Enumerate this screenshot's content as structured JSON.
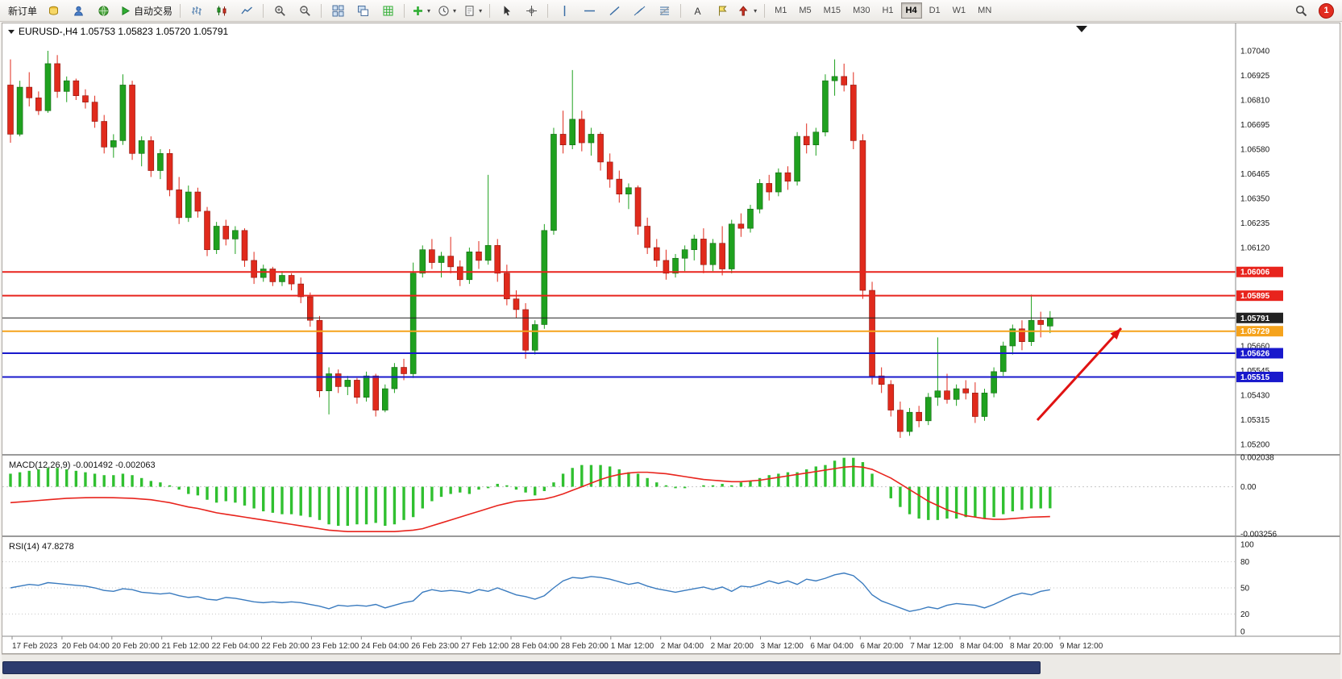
{
  "toolbar": {
    "notification_count": "1",
    "active_timeframe": "H4",
    "timeframes": [
      "M1",
      "M5",
      "M15",
      "M30",
      "H1",
      "H4",
      "D1",
      "W1",
      "MN"
    ],
    "items": [
      {
        "name": "new-order-button",
        "label": "新订单"
      },
      {
        "name": "accounts-button",
        "icon": "coins"
      },
      {
        "name": "support-button",
        "icon": "user"
      },
      {
        "name": "web-terminal-button",
        "icon": "globe"
      },
      {
        "name": "auto-trading-button",
        "icon": "play",
        "label": "自动交易"
      },
      {
        "sep": true
      },
      {
        "name": "bar-chart-button",
        "icon": "bars"
      },
      {
        "name": "candlestick-chart-button",
        "icon": "candles"
      },
      {
        "name": "line-chart-button",
        "icon": "line"
      },
      {
        "sep": true
      },
      {
        "name": "zoom-in-button",
        "icon": "zoom-in"
      },
      {
        "name": "zoom-out-button",
        "icon": "zoom-out"
      },
      {
        "sep": true
      },
      {
        "name": "tile-windows-button",
        "icon": "tile"
      },
      {
        "name": "cascade-windows-button",
        "icon": "cascade"
      },
      {
        "name": "grid-button",
        "icon": "grid"
      },
      {
        "sep": true
      },
      {
        "name": "indicators-button",
        "icon": "plus",
        "caret": true
      },
      {
        "name": "periods-button",
        "icon": "clock",
        "caret": true
      },
      {
        "name": "templates-button",
        "icon": "template",
        "caret": true
      },
      {
        "sep": true
      },
      {
        "name": "cursor-button",
        "icon": "cursor"
      },
      {
        "name": "crosshair-button",
        "icon": "crosshair"
      },
      {
        "sep": true
      },
      {
        "name": "vertical-line-button",
        "icon": "vline"
      },
      {
        "name": "horizontal-line-button",
        "icon": "hline"
      },
      {
        "name": "trendline-button",
        "icon": "trend"
      },
      {
        "name": "channel-button",
        "icon": "channel"
      },
      {
        "name": "fibonacci-button",
        "icon": "fibo"
      },
      {
        "sep": true
      },
      {
        "name": "text-button",
        "icon": "text"
      },
      {
        "name": "label-button",
        "icon": "label"
      },
      {
        "name": "arrows-button",
        "icon": "arrows",
        "caret": true
      },
      {
        "sep": true
      }
    ]
  },
  "chart_data": {
    "type": "candlestick",
    "title": "EURUSD-,H4  1.05753 1.05823 1.05720 1.05791",
    "symbol": "EURUSD-",
    "period": "H4",
    "ohlc": {
      "open": "1.05753",
      "high": "1.05823",
      "low": "1.05720",
      "close": "1.05791"
    },
    "ylim": [
      1.052,
      1.0704
    ],
    "up_color": "#1fa11f",
    "down_color": "#e02a1c",
    "price_axis_ticks": [
      "1.07040",
      "1.06925",
      "1.06810",
      "1.06695",
      "1.06580",
      "1.06465",
      "1.06350",
      "1.06235",
      "1.06120",
      "1.05660",
      "1.05545",
      "1.05430",
      "1.05315",
      "1.05200"
    ],
    "levels": [
      {
        "name": "resistance-line-upper",
        "price": 1.06006,
        "label": "1.06006",
        "color": "#e8241d",
        "width": 2
      },
      {
        "name": "resistance-line-lower",
        "price": 1.05895,
        "label": "1.05895",
        "color": "#e8241d",
        "width": 2
      },
      {
        "name": "current-price-line",
        "price": 1.05791,
        "label": "1.05791",
        "color": "#222222",
        "width": 1
      },
      {
        "name": "pivot-line",
        "price": 1.05729,
        "label": "1.05729",
        "color": "#f5a31c",
        "width": 2
      },
      {
        "name": "support-line-upper",
        "price": 1.05626,
        "label": "1.05626",
        "color": "#1919cc",
        "width": 2
      },
      {
        "name": "support-line-lower",
        "price": 1.05515,
        "label": "1.05515",
        "color": "#1919cc",
        "width": 2
      }
    ],
    "time_labels": [
      "17 Feb 2023",
      "20 Feb 04:00",
      "20 Feb 20:00",
      "21 Feb 12:00",
      "22 Feb 04:00",
      "22 Feb 20:00",
      "23 Feb 12:00",
      "24 Feb 04:00",
      "26 Feb 23:00",
      "27 Feb 12:00",
      "28 Feb 04:00",
      "28 Feb 20:00",
      "1 Mar 12:00",
      "2 Mar 04:00",
      "2 Mar 20:00",
      "3 Mar 12:00",
      "6 Mar 04:00",
      "6 Mar 20:00",
      "7 Mar 12:00",
      "8 Mar 04:00",
      "8 Mar 20:00",
      "9 Mar 12:00"
    ],
    "candles": [
      [
        1.0688,
        1.07,
        1.0661,
        1.0665
      ],
      [
        1.0665,
        1.069,
        1.0664,
        1.0687
      ],
      [
        1.0687,
        1.0694,
        1.0678,
        1.0682
      ],
      [
        1.0682,
        1.0685,
        1.0674,
        1.0676
      ],
      [
        1.0676,
        1.0704,
        1.0675,
        1.0698
      ],
      [
        1.0698,
        1.0702,
        1.0682,
        1.0685
      ],
      [
        1.0685,
        1.0692,
        1.068,
        1.069
      ],
      [
        1.069,
        1.0691,
        1.0681,
        1.0683
      ],
      [
        1.0683,
        1.0686,
        1.0677,
        1.068
      ],
      [
        1.068,
        1.0683,
        1.0668,
        1.0671
      ],
      [
        1.0671,
        1.0674,
        1.0656,
        1.0659
      ],
      [
        1.0659,
        1.0665,
        1.0654,
        1.0662
      ],
      [
        1.0662,
        1.0693,
        1.066,
        1.0688
      ],
      [
        1.0688,
        1.069,
        1.0653,
        1.0656
      ],
      [
        1.0656,
        1.0664,
        1.065,
        1.0662
      ],
      [
        1.0662,
        1.0664,
        1.0645,
        1.0648
      ],
      [
        1.0648,
        1.0658,
        1.0644,
        1.0656
      ],
      [
        1.0656,
        1.0658,
        1.0636,
        1.0639
      ],
      [
        1.0639,
        1.0645,
        1.0623,
        1.0626
      ],
      [
        1.0626,
        1.0641,
        1.0624,
        1.0638
      ],
      [
        1.0638,
        1.064,
        1.0626,
        1.0629
      ],
      [
        1.0629,
        1.0631,
        1.0608,
        1.0611
      ],
      [
        1.0611,
        1.0624,
        1.0609,
        1.0622
      ],
      [
        1.0622,
        1.0625,
        1.0613,
        1.0616
      ],
      [
        1.0616,
        1.0622,
        1.0609,
        1.062
      ],
      [
        1.062,
        1.0621,
        1.0603,
        1.0606
      ],
      [
        1.0606,
        1.061,
        1.0595,
        1.0598
      ],
      [
        1.0598,
        1.0604,
        1.0596,
        1.0602
      ],
      [
        1.0602,
        1.0603,
        1.0594,
        1.0596
      ],
      [
        1.0596,
        1.0601,
        1.0594,
        1.0599
      ],
      [
        1.0599,
        1.06,
        1.0592,
        1.0595
      ],
      [
        1.0595,
        1.0598,
        1.0586,
        1.0589
      ],
      [
        1.0589,
        1.0591,
        1.0575,
        1.0578
      ],
      [
        1.0578,
        1.058,
        1.0542,
        1.0545
      ],
      [
        1.0545,
        1.0556,
        1.0534,
        1.0553
      ],
      [
        1.0553,
        1.0555,
        1.0544,
        1.0547
      ],
      [
        1.0547,
        1.0552,
        1.0543,
        1.055
      ],
      [
        1.055,
        1.0551,
        1.0539,
        1.0542
      ],
      [
        1.0542,
        1.0554,
        1.054,
        1.0552
      ],
      [
        1.0552,
        1.0553,
        1.0533,
        1.0536
      ],
      [
        1.0536,
        1.0548,
        1.0535,
        1.0546
      ],
      [
        1.0546,
        1.0558,
        1.0544,
        1.0556
      ],
      [
        1.0556,
        1.056,
        1.055,
        1.0553
      ],
      [
        1.0553,
        1.0605,
        1.0551,
        1.06
      ],
      [
        1.06,
        1.0613,
        1.0598,
        1.0611
      ],
      [
        1.0611,
        1.0616,
        1.0602,
        1.0605
      ],
      [
        1.0605,
        1.061,
        1.0598,
        1.0608
      ],
      [
        1.0608,
        1.0617,
        1.06,
        1.0603
      ],
      [
        1.0603,
        1.0606,
        1.0594,
        1.0597
      ],
      [
        1.0597,
        1.0612,
        1.0595,
        1.061
      ],
      [
        1.061,
        1.0615,
        1.0602,
        1.0606
      ],
      [
        1.0606,
        1.0646,
        1.0604,
        1.0613
      ],
      [
        1.0613,
        1.0616,
        1.0596,
        1.06
      ],
      [
        1.06,
        1.0604,
        1.0585,
        1.0588
      ],
      [
        1.0588,
        1.0592,
        1.0579,
        1.0583
      ],
      [
        1.0583,
        1.0586,
        1.056,
        1.0564
      ],
      [
        1.0564,
        1.0578,
        1.0562,
        1.0576
      ],
      [
        1.0576,
        1.0623,
        1.0574,
        1.062
      ],
      [
        1.062,
        1.0668,
        1.0618,
        1.0665
      ],
      [
        1.0665,
        1.0676,
        1.0656,
        1.066
      ],
      [
        1.066,
        1.0695,
        1.0658,
        1.0672
      ],
      [
        1.0672,
        1.0676,
        1.0657,
        1.0661
      ],
      [
        1.0661,
        1.0668,
        1.0655,
        1.0665
      ],
      [
        1.0665,
        1.0666,
        1.0648,
        1.0652
      ],
      [
        1.0652,
        1.0656,
        1.064,
        1.0644
      ],
      [
        1.0644,
        1.0648,
        1.0633,
        1.0637
      ],
      [
        1.0637,
        1.0642,
        1.063,
        1.064
      ],
      [
        1.064,
        1.0641,
        1.0618,
        1.0622
      ],
      [
        1.0622,
        1.0626,
        1.0609,
        1.0612
      ],
      [
        1.0612,
        1.0616,
        1.0603,
        1.0606
      ],
      [
        1.0606,
        1.0611,
        1.0597,
        1.06
      ],
      [
        1.06,
        1.0609,
        1.0598,
        1.0607
      ],
      [
        1.0607,
        1.0613,
        1.0601,
        1.0611
      ],
      [
        1.0611,
        1.0618,
        1.0606,
        1.0616
      ],
      [
        1.0616,
        1.0621,
        1.06,
        1.0604
      ],
      [
        1.0604,
        1.0616,
        1.0601,
        1.0614
      ],
      [
        1.0614,
        1.0622,
        1.0599,
        1.0602
      ],
      [
        1.0602,
        1.0625,
        1.06,
        1.0623
      ],
      [
        1.0623,
        1.0628,
        1.0617,
        1.0621
      ],
      [
        1.0621,
        1.0632,
        1.0619,
        1.063
      ],
      [
        1.063,
        1.0644,
        1.0628,
        1.0642
      ],
      [
        1.0642,
        1.0646,
        1.0634,
        1.0638
      ],
      [
        1.0638,
        1.0649,
        1.0636,
        1.0647
      ],
      [
        1.0647,
        1.065,
        1.0639,
        1.0643
      ],
      [
        1.0643,
        1.0666,
        1.0641,
        1.0664
      ],
      [
        1.0664,
        1.067,
        1.0656,
        1.066
      ],
      [
        1.066,
        1.0668,
        1.0655,
        1.0666
      ],
      [
        1.0666,
        1.0693,
        1.0664,
        1.069
      ],
      [
        1.069,
        1.07,
        1.0683,
        1.0692
      ],
      [
        1.0692,
        1.0698,
        1.0685,
        1.0688
      ],
      [
        1.0688,
        1.0694,
        1.0658,
        1.0662
      ],
      [
        1.0662,
        1.0665,
        1.0588,
        1.0592
      ],
      [
        1.0592,
        1.0596,
        1.0548,
        1.0552
      ],
      [
        1.0552,
        1.0556,
        1.0544,
        1.0548
      ],
      [
        1.0548,
        1.055,
        1.0533,
        1.0536
      ],
      [
        1.0536,
        1.054,
        1.0523,
        1.0526
      ],
      [
        1.0526,
        1.0537,
        1.0524,
        1.0535
      ],
      [
        1.0535,
        1.0538,
        1.0528,
        1.0531
      ],
      [
        1.0531,
        1.0544,
        1.0529,
        1.0542
      ],
      [
        1.0542,
        1.057,
        1.0538,
        1.0545
      ],
      [
        1.0545,
        1.0553,
        1.0539,
        1.0541
      ],
      [
        1.0541,
        1.0548,
        1.0538,
        1.0546
      ],
      [
        1.0546,
        1.055,
        1.0541,
        1.0544
      ],
      [
        1.0544,
        1.0549,
        1.053,
        1.0533
      ],
      [
        1.0533,
        1.0546,
        1.0531,
        1.0544
      ],
      [
        1.0544,
        1.0556,
        1.0542,
        1.0554
      ],
      [
        1.0554,
        1.0568,
        1.0552,
        1.0566
      ],
      [
        1.0566,
        1.0576,
        1.0562,
        1.0574
      ],
      [
        1.0574,
        1.0578,
        1.0564,
        1.0568
      ],
      [
        1.0568,
        1.059,
        1.0566,
        1.0578
      ],
      [
        1.0578,
        1.0582,
        1.057,
        1.0576
      ],
      [
        1.05753,
        1.05823,
        1.0572,
        1.05791
      ]
    ],
    "macd": {
      "display": "MACD(12,26,9) -0.001492 -0.002063",
      "histogram_color": "#30c030",
      "signal_color": "#e8241d",
      "range": [
        -0.003256,
        0.002038
      ],
      "axis": [
        "0.002038",
        "0.00",
        "-0.003256"
      ],
      "histogram": [
        0.0009,
        0.001,
        0.0011,
        0.0012,
        0.0013,
        0.0013,
        0.0012,
        0.0011,
        0.001,
        0.0009,
        0.0008,
        0.0008,
        0.0009,
        0.0008,
        0.0006,
        0.0004,
        0.0003,
        0.0001,
        -0.0002,
        -0.0005,
        -0.0006,
        -0.0009,
        -0.0011,
        -0.001,
        -0.0011,
        -0.0013,
        -0.0015,
        -0.0017,
        -0.0018,
        -0.0019,
        -0.0019,
        -0.002,
        -0.0021,
        -0.0023,
        -0.0026,
        -0.0027,
        -0.0027,
        -0.0026,
        -0.0026,
        -0.0025,
        -0.0027,
        -0.0026,
        -0.0023,
        -0.0021,
        -0.0015,
        -0.001,
        -0.0007,
        -0.0005,
        -0.0004,
        -0.0005,
        -0.0002,
        -0.0001,
        0.0002,
        0.0001,
        -0.0002,
        -0.0004,
        -0.0006,
        -0.0003,
        0.0003,
        0.0009,
        0.0013,
        0.0015,
        0.0015,
        0.0015,
        0.0014,
        0.0012,
        0.001,
        0.0009,
        0.0006,
        0.0003,
        0.0001,
        -0.0001,
        -0.0001,
        0,
        0.0001,
        0.0001,
        0.0002,
        0.0001,
        0.0003,
        0.0004,
        0.0006,
        0.0008,
        0.0009,
        0.001,
        0.001,
        0.0012,
        0.0014,
        0.0015,
        0.0018,
        0.002,
        0.002,
        0.0017,
        0.0009,
        0,
        -0.0008,
        -0.0014,
        -0.0019,
        -0.0022,
        -0.0023,
        -0.0023,
        -0.0022,
        -0.0022,
        -0.0021,
        -0.0021,
        -0.0022,
        -0.0021,
        -0.0019,
        -0.0017,
        -0.0016,
        -0.0015,
        -0.0015,
        -0.001492
      ],
      "signal": [
        -0.0011,
        -0.00105,
        -0.001,
        -0.00095,
        -0.0009,
        -0.00085,
        -0.0008,
        -0.00078,
        -0.00076,
        -0.00075,
        -0.00075,
        -0.00076,
        -0.00078,
        -0.0008,
        -0.00085,
        -0.0009,
        -0.001,
        -0.0011,
        -0.00125,
        -0.0014,
        -0.0015,
        -0.00165,
        -0.0018,
        -0.0019,
        -0.002,
        -0.0021,
        -0.0022,
        -0.0023,
        -0.0024,
        -0.0025,
        -0.0026,
        -0.0027,
        -0.0028,
        -0.0029,
        -0.003,
        -0.00305,
        -0.0031,
        -0.0031,
        -0.0031,
        -0.0031,
        -0.0031,
        -0.0031,
        -0.00305,
        -0.003,
        -0.0029,
        -0.0027,
        -0.0025,
        -0.0023,
        -0.0021,
        -0.0019,
        -0.0017,
        -0.0015,
        -0.0013,
        -0.00115,
        -0.001,
        -0.00095,
        -0.0009,
        -0.00085,
        -0.0007,
        -0.0005,
        -0.00025,
        0,
        0.00025,
        0.0005,
        0.0007,
        0.00085,
        0.00095,
        0.001,
        0.001,
        0.00095,
        0.0009,
        0.0008,
        0.0007,
        0.0006,
        0.0005,
        0.00045,
        0.0004,
        0.00035,
        0.00035,
        0.0004,
        0.00045,
        0.00055,
        0.00065,
        0.00075,
        0.00085,
        0.00095,
        0.00105,
        0.00115,
        0.00125,
        0.00135,
        0.0014,
        0.00135,
        0.0012,
        0.0009,
        0.0006,
        0.0002,
        -0.0002,
        -0.0006,
        -0.001,
        -0.0013,
        -0.0016,
        -0.0018,
        -0.002,
        -0.0021,
        -0.0022,
        -0.00225,
        -0.00225,
        -0.0022,
        -0.00215,
        -0.0021,
        -0.00208,
        -0.002063
      ]
    },
    "rsi": {
      "display": "RSI(14) 47.8278",
      "color": "#3a7bbf",
      "range": [
        0,
        100
      ],
      "axis": [
        "100",
        "80",
        "50",
        "20",
        "0"
      ],
      "levels": [
        80,
        50,
        20
      ],
      "values": [
        50,
        52,
        54,
        53,
        56,
        55,
        54,
        53,
        52,
        50,
        47,
        46,
        49,
        48,
        45,
        44,
        43,
        44,
        41,
        39,
        40,
        37,
        36,
        39,
        38,
        36,
        34,
        33,
        34,
        33,
        34,
        33,
        31,
        29,
        26,
        30,
        29,
        30,
        29,
        31,
        27,
        30,
        33,
        35,
        45,
        48,
        46,
        47,
        46,
        44,
        48,
        46,
        50,
        46,
        42,
        40,
        37,
        41,
        50,
        58,
        62,
        61,
        63,
        62,
        60,
        57,
        54,
        56,
        52,
        49,
        47,
        45,
        47,
        49,
        51,
        48,
        51,
        46,
        52,
        51,
        54,
        58,
        55,
        58,
        54,
        60,
        58,
        61,
        65,
        67,
        64,
        55,
        42,
        35,
        31,
        27,
        23,
        25,
        28,
        26,
        30,
        32,
        31,
        30,
        27,
        31,
        36,
        41,
        44,
        42,
        46,
        47.8278
      ]
    },
    "arrow": {
      "from": [
        1284,
        492
      ],
      "to": [
        1388,
        378
      ],
      "color": "#e01212"
    }
  }
}
